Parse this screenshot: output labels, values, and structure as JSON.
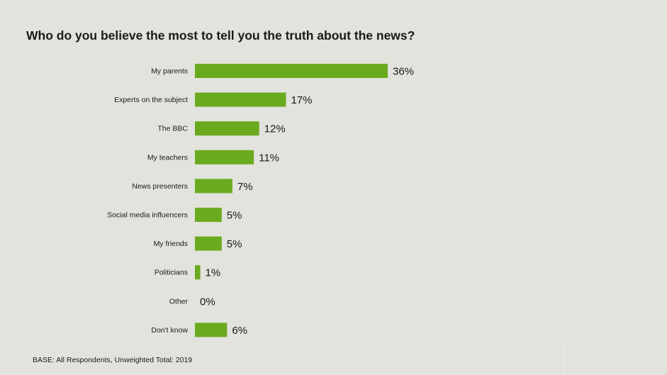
{
  "colors": {
    "background": "#e2e3dc",
    "bar": "#6aaa1f",
    "text": "#1a1a1a"
  },
  "chart_data": {
    "type": "bar",
    "orientation": "horizontal",
    "title": "Who do you believe the most to tell you the truth about the news?",
    "categories": [
      "My parents",
      "Experts on the subject",
      "The BBC",
      "My teachers",
      "News presenters",
      "Social media influencers",
      "My friends",
      "Politicians",
      "Other",
      "Don't know"
    ],
    "values": [
      36,
      17,
      12,
      11,
      7,
      5,
      5,
      1,
      0,
      6
    ],
    "value_labels": [
      "36%",
      "17%",
      "12%",
      "11%",
      "7%",
      "5%",
      "5%",
      "1%",
      "0%",
      "6%"
    ],
    "unit": "%",
    "xlim": [
      0,
      36
    ],
    "grid": false,
    "legend": "none"
  },
  "footer": {
    "base_note": "BASE: All Respondents, Unweighted Total: 2019"
  }
}
